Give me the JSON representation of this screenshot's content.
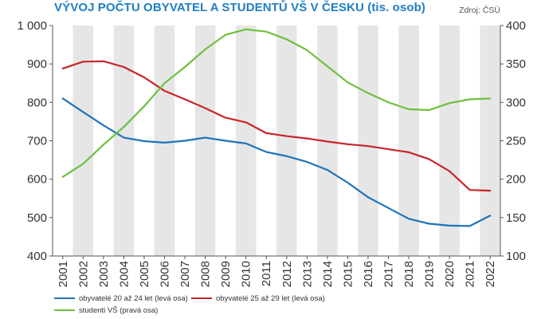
{
  "chart_data": {
    "type": "line",
    "title": "VÝVOJ POČTU OBYVATEL A STUDENTŮ VŠ V ČESKU (tis. osob)",
    "source": "Zdroj: ČSÚ",
    "x": [
      "2001",
      "2002",
      "2003",
      "2004",
      "2005",
      "2006",
      "2007",
      "2008",
      "2009",
      "2010",
      "2011",
      "2012",
      "2013",
      "2014",
      "2015",
      "2016",
      "2017",
      "2018",
      "2019",
      "2020",
      "2021",
      "2022"
    ],
    "y_left": {
      "ylim": [
        400,
        1000
      ],
      "ticks": [
        "400",
        "500",
        "600",
        "700",
        "800",
        "900",
        "1 000"
      ]
    },
    "y_right": {
      "ylim": [
        100,
        400
      ],
      "ticks": [
        "100",
        "150",
        "200",
        "250",
        "300",
        "350",
        "400"
      ]
    },
    "grid": "alternating vertical bands",
    "legend_position": "bottom",
    "series": [
      {
        "name": "obyvatelé 20 až 24 let (levá osa)",
        "axis": "left",
        "color": "#1f73b7",
        "values": [
          810,
          775,
          740,
          708,
          699,
          695,
          700,
          708,
          700,
          693,
          671,
          660,
          645,
          624,
          591,
          553,
          525,
          497,
          484,
          479,
          478,
          505
        ]
      },
      {
        "name": "obyvatelé 25 až 29 let (levá osa)",
        "axis": "left",
        "color": "#c8252a",
        "values": [
          888,
          906,
          907,
          892,
          865,
          830,
          808,
          785,
          760,
          748,
          720,
          712,
          706,
          698,
          691,
          686,
          678,
          670,
          652,
          621,
          572,
          570
        ]
      },
      {
        "name": "studenti VŠ (pravá osa)",
        "axis": "right",
        "color": "#6dc03f",
        "values": [
          203,
          220,
          245,
          268,
          295,
          325,
          346,
          369,
          388,
          395,
          392,
          382,
          368,
          347,
          326,
          312,
          300,
          291,
          290,
          299,
          304,
          305
        ]
      }
    ]
  }
}
